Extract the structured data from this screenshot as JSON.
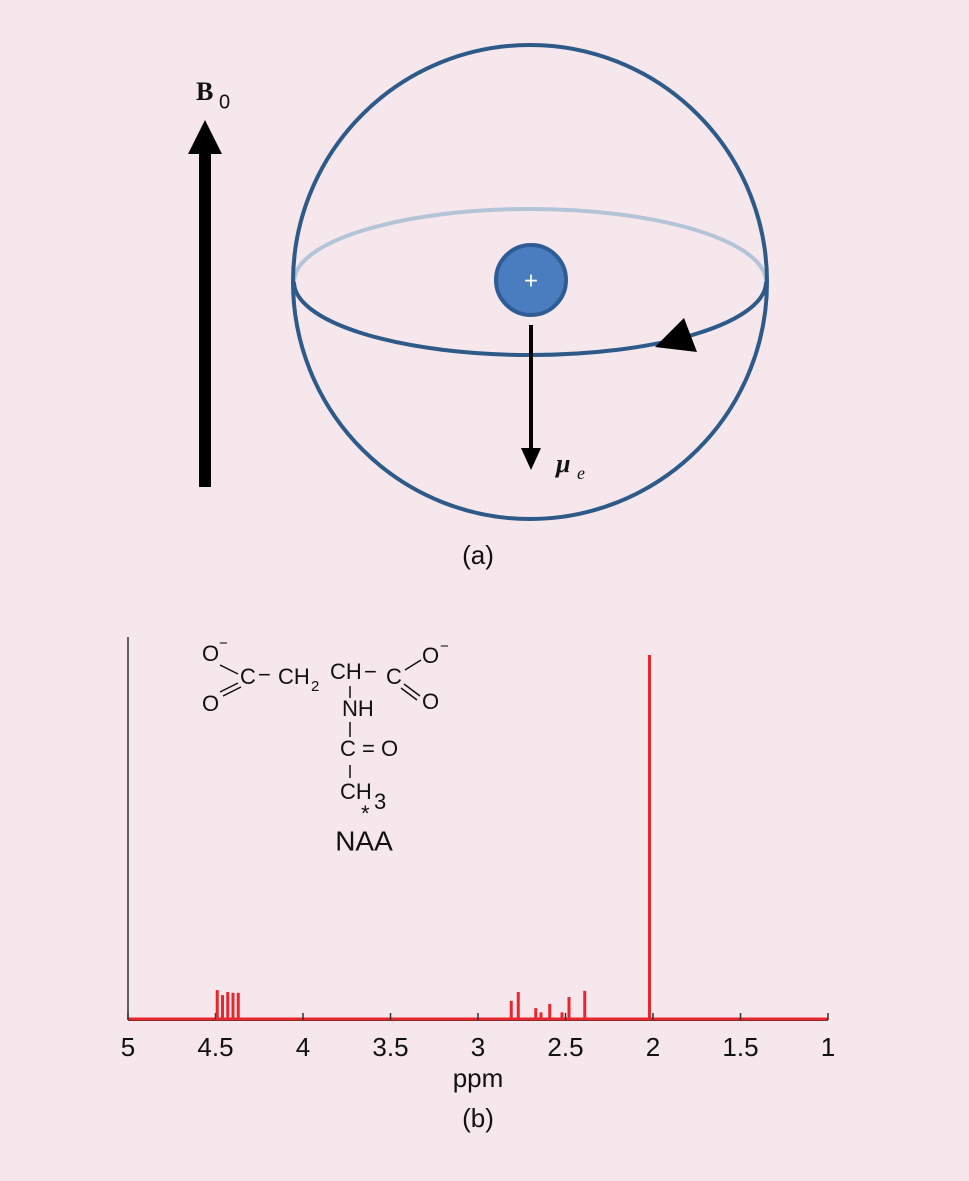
{
  "diagram": {
    "b0": {
      "main": "B",
      "sub": "0"
    },
    "nucleus": "+",
    "mu": {
      "main": "μ",
      "sub": "e"
    },
    "caption": "(a)"
  },
  "structure": {
    "fragments": [
      "O",
      "−",
      "C",
      "−",
      "CH",
      "2",
      "CH",
      "−",
      "C",
      "O",
      "−",
      "O",
      "O",
      "NH",
      "C",
      "= O",
      "CH",
      "3",
      "*"
    ],
    "name": "NAA"
  },
  "chart_data": {
    "type": "stem",
    "color": "#e8262d",
    "x": [
      4.49,
      4.46,
      4.43,
      4.4,
      4.37,
      2.81,
      2.77,
      2.67,
      2.64,
      2.59,
      2.52,
      2.48,
      2.39,
      2.02
    ],
    "values": [
      0.078,
      0.065,
      0.073,
      0.071,
      0.071,
      0.05,
      0.073,
      0.031,
      0.02,
      0.042,
      0.02,
      0.06,
      0.076,
      0.953
    ],
    "xlim": [
      5,
      1
    ],
    "ylim": [
      0,
      1
    ],
    "xticks": [
      5,
      4.5,
      4,
      3.5,
      3,
      2.5,
      2,
      1.5,
      1
    ],
    "xlabel": "ppm",
    "caption": "(b)"
  }
}
